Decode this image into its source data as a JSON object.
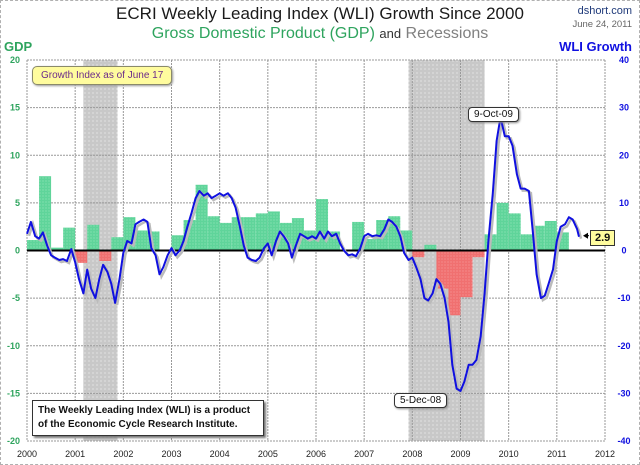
{
  "header": {
    "title": "ECRI Weekly Leading Index (WLI) Growth Since 2000",
    "subtitle_gdp": "Gross Domestic Product (GDP)",
    "subtitle_and": "and",
    "subtitle_recessions": "Recessions",
    "site": "dshort.com",
    "date": "June 24, 2011"
  },
  "annotations": {
    "growth_index_note": "Growth Index as of June 17",
    "peak_label": "9-Oct-09",
    "trough_label": "5-Dec-08",
    "last_value": "2.9",
    "footnote_line1": "The Weekly Leading Index (WLI) is a product",
    "footnote_line2": "of the Economic Cycle Research Institute."
  },
  "colors": {
    "gdp_positive": "#5fd49a",
    "gdp_negative": "#f07070",
    "wli_line": "#1010e0",
    "recession": "#c8c8c8",
    "left_axis": "#2ea45e",
    "right_axis": "#1010e0"
  },
  "chart_data": {
    "type": "bar+line",
    "title": "ECRI Weekly Leading Index (WLI) Growth Since 2000",
    "subtitle": "Gross Domestic Product (GDP) and Recessions",
    "xlabel": "",
    "ylabel_left": "GDP",
    "ylabel_right": "WLI Growth",
    "x_ticks": [
      "2000",
      "2001",
      "2002",
      "2003",
      "2004",
      "2005",
      "2006",
      "2007",
      "2008",
      "2009",
      "2010",
      "2011",
      "2012"
    ],
    "xlim": [
      2000,
      2012
    ],
    "ylim_left": [
      -20,
      20
    ],
    "yticks_left": [
      20,
      15,
      10,
      5,
      0,
      -5,
      -10,
      -15,
      -20
    ],
    "ylim_right": [
      -40,
      40
    ],
    "yticks_right": [
      40,
      30,
      20,
      10,
      0,
      -10,
      -20,
      -30,
      -40
    ],
    "grid": true,
    "recessions": [
      {
        "start": 2001.17,
        "end": 2001.88
      },
      {
        "start": 2007.92,
        "end": 2009.5
      }
    ],
    "gdp_quarterly": {
      "name": "GDP",
      "start": 2000.0,
      "values": [
        1.1,
        7.8,
        0.3,
        2.4,
        -1.3,
        2.7,
        -1.1,
        1.4,
        3.5,
        2.1,
        2.0,
        0.1,
        1.6,
        3.2,
        6.9,
        3.6,
        2.9,
        3.5,
        3.5,
        3.9,
        4.1,
        2.9,
        3.4,
        2.1,
        5.4,
        2.0,
        0.1,
        3.0,
        1.2,
        3.2,
        3.6,
        2.1,
        -0.7,
        0.6,
        -4.0,
        -6.8,
        -4.9,
        -0.7,
        1.7,
        5.0,
        3.9,
        1.7,
        2.6,
        3.1,
        1.9
      ]
    },
    "wli_growth": {
      "name": "WLI Growth",
      "points": [
        [
          2000.0,
          3.5
        ],
        [
          2000.08,
          6.0
        ],
        [
          2000.17,
          3.0
        ],
        [
          2000.25,
          2.5
        ],
        [
          2000.33,
          3.8
        ],
        [
          2000.42,
          1.0
        ],
        [
          2000.5,
          -1.0
        ],
        [
          2000.58,
          -1.5
        ],
        [
          2000.67,
          -2.0
        ],
        [
          2000.75,
          -1.8
        ],
        [
          2000.83,
          -2.2
        ],
        [
          2000.92,
          0.3
        ],
        [
          2001.0,
          -2.5
        ],
        [
          2001.08,
          -6.0
        ],
        [
          2001.17,
          -9.0
        ],
        [
          2001.25,
          -4.0
        ],
        [
          2001.33,
          -8.0
        ],
        [
          2001.42,
          -10.0
        ],
        [
          2001.5,
          -6.0
        ],
        [
          2001.58,
          -3.0
        ],
        [
          2001.67,
          -4.5
        ],
        [
          2001.75,
          -7.0
        ],
        [
          2001.83,
          -11.0
        ],
        [
          2001.92,
          -6.0
        ],
        [
          2002.0,
          -0.5
        ],
        [
          2002.08,
          2.0
        ],
        [
          2002.17,
          1.5
        ],
        [
          2002.25,
          5.5
        ],
        [
          2002.33,
          6.0
        ],
        [
          2002.42,
          6.5
        ],
        [
          2002.5,
          6.0
        ],
        [
          2002.58,
          0.5
        ],
        [
          2002.67,
          -1.0
        ],
        [
          2002.75,
          -5.0
        ],
        [
          2002.83,
          -3.5
        ],
        [
          2002.92,
          -1.0
        ],
        [
          2003.0,
          0.5
        ],
        [
          2003.08,
          -1.0
        ],
        [
          2003.17,
          0.0
        ],
        [
          2003.25,
          2.0
        ],
        [
          2003.33,
          5.0
        ],
        [
          2003.42,
          8.0
        ],
        [
          2003.5,
          11.0
        ],
        [
          2003.58,
          12.5
        ],
        [
          2003.67,
          11.5
        ],
        [
          2003.75,
          12.0
        ],
        [
          2003.83,
          11.0
        ],
        [
          2003.92,
          11.5
        ],
        [
          2004.0,
          12.0
        ],
        [
          2004.08,
          11.5
        ],
        [
          2004.17,
          12.0
        ],
        [
          2004.25,
          11.0
        ],
        [
          2004.33,
          9.0
        ],
        [
          2004.42,
          5.0
        ],
        [
          2004.5,
          1.0
        ],
        [
          2004.58,
          -1.5
        ],
        [
          2004.67,
          -2.0
        ],
        [
          2004.75,
          -2.2
        ],
        [
          2004.83,
          -1.5
        ],
        [
          2004.92,
          0.5
        ],
        [
          2005.0,
          1.5
        ],
        [
          2005.08,
          -1.0
        ],
        [
          2005.17,
          2.0
        ],
        [
          2005.25,
          4.0
        ],
        [
          2005.33,
          3.0
        ],
        [
          2005.42,
          1.5
        ],
        [
          2005.5,
          -1.5
        ],
        [
          2005.58,
          1.0
        ],
        [
          2005.67,
          3.5
        ],
        [
          2005.75,
          3.0
        ],
        [
          2005.83,
          2.5
        ],
        [
          2005.92,
          3.0
        ],
        [
          2006.0,
          2.5
        ],
        [
          2006.08,
          4.0
        ],
        [
          2006.17,
          2.5
        ],
        [
          2006.25,
          4.0
        ],
        [
          2006.33,
          3.0
        ],
        [
          2006.42,
          3.5
        ],
        [
          2006.5,
          1.5
        ],
        [
          2006.58,
          0.0
        ],
        [
          2006.67,
          -1.0
        ],
        [
          2006.75,
          -0.8
        ],
        [
          2006.83,
          -1.2
        ],
        [
          2006.92,
          0.5
        ],
        [
          2007.0,
          3.0
        ],
        [
          2007.08,
          3.5
        ],
        [
          2007.17,
          3.0
        ],
        [
          2007.25,
          3.2
        ],
        [
          2007.33,
          3.0
        ],
        [
          2007.42,
          4.5
        ],
        [
          2007.5,
          6.5
        ],
        [
          2007.58,
          6.0
        ],
        [
          2007.67,
          5.0
        ],
        [
          2007.75,
          3.0
        ],
        [
          2007.83,
          -0.5
        ],
        [
          2007.92,
          -2.0
        ],
        [
          2008.0,
          -1.5
        ],
        [
          2008.08,
          -3.5
        ],
        [
          2008.17,
          -6.0
        ],
        [
          2008.25,
          -10.0
        ],
        [
          2008.33,
          -10.5
        ],
        [
          2008.42,
          -9.0
        ],
        [
          2008.5,
          -6.0
        ],
        [
          2008.58,
          -7.0
        ],
        [
          2008.67,
          -10.0
        ],
        [
          2008.75,
          -15.0
        ],
        [
          2008.83,
          -24.0
        ],
        [
          2008.92,
          -29.0
        ],
        [
          2009.0,
          -29.5
        ],
        [
          2009.08,
          -27.5
        ],
        [
          2009.17,
          -24.0
        ],
        [
          2009.25,
          -24.0
        ],
        [
          2009.33,
          -23.0
        ],
        [
          2009.42,
          -18.0
        ],
        [
          2009.5,
          -9.0
        ],
        [
          2009.58,
          2.0
        ],
        [
          2009.67,
          12.0
        ],
        [
          2009.75,
          23.0
        ],
        [
          2009.83,
          28.0
        ],
        [
          2009.92,
          24.0
        ],
        [
          2010.0,
          24.0
        ],
        [
          2010.08,
          22.0
        ],
        [
          2010.17,
          16.0
        ],
        [
          2010.25,
          13.0
        ],
        [
          2010.33,
          13.0
        ],
        [
          2010.42,
          12.5
        ],
        [
          2010.5,
          4.0
        ],
        [
          2010.58,
          -5.0
        ],
        [
          2010.67,
          -10.0
        ],
        [
          2010.75,
          -9.5
        ],
        [
          2010.83,
          -7.0
        ],
        [
          2010.92,
          -4.0
        ],
        [
          2011.0,
          2.0
        ],
        [
          2011.08,
          5.0
        ],
        [
          2011.17,
          5.5
        ],
        [
          2011.25,
          7.0
        ],
        [
          2011.33,
          6.5
        ],
        [
          2011.42,
          4.5
        ],
        [
          2011.46,
          2.9
        ]
      ]
    },
    "annotations": [
      {
        "label": "9-Oct-09",
        "x": 2009.77,
        "y": 28.0
      },
      {
        "label": "5-Dec-08",
        "x": 2008.93,
        "y": -29.7
      },
      {
        "label": "2.9",
        "x": 2011.46,
        "y": 2.9
      }
    ]
  }
}
